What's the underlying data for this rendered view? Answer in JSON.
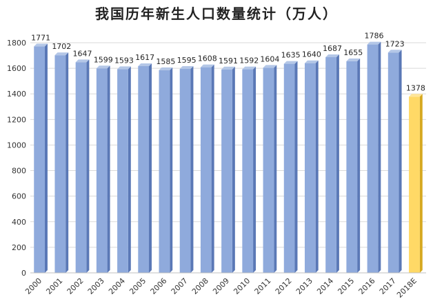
{
  "chart_data": {
    "type": "bar",
    "title": "我国历年新生人口数量统计（万人）",
    "xlabel": "",
    "ylabel": "",
    "categories": [
      "2000",
      "2001",
      "2002",
      "2003",
      "2004",
      "2005",
      "2006",
      "2007",
      "2008",
      "2009",
      "2010",
      "2011",
      "2012",
      "2013",
      "2014",
      "2015",
      "2016",
      "2017",
      "2018E"
    ],
    "values": [
      1771,
      1702,
      1647,
      1599,
      1593,
      1617,
      1585,
      1595,
      1608,
      1591,
      1592,
      1604,
      1635,
      1640,
      1687,
      1655,
      1786,
      1723,
      1378
    ],
    "ylim": [
      0,
      1800
    ],
    "yticks": [
      "0",
      "200",
      "400",
      "600",
      "800",
      "1000",
      "1200",
      "1400",
      "1600",
      "1800"
    ],
    "grid": true,
    "legend": "none",
    "colors": {
      "bar": "#8faadc",
      "bar_side": "#5a78b6",
      "bar_top": "#b4c7e7",
      "highlight": "#ffd966",
      "highlight_side": "#d6a920",
      "highlight_top": "#ffe699",
      "grid": "#d9d9d9"
    },
    "highlight_index": 18
  }
}
